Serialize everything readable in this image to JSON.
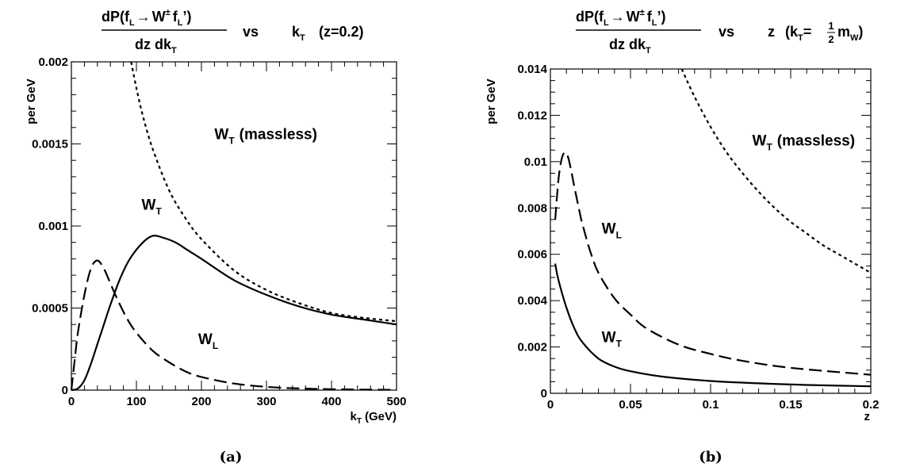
{
  "chart_data": [
    {
      "type": "line",
      "caption": "(a)",
      "title": {
        "numerator_main": "dP(f",
        "numerator_sub1": "L",
        "numerator_arrow": "→",
        "numerator_W": "W",
        "numerator_sup": "±",
        "numerator_f": "f",
        "numerator_sub2": "L",
        "numerator_end": "’)",
        "denominator_main": "dz dk",
        "denominator_sub": "T",
        "vs": "vs",
        "var_main": "k",
        "var_sub": "T",
        "condition": "(z=0.2)"
      },
      "ylabel": "per GeV",
      "xlabel_main": "k",
      "xlabel_sub": "T",
      "xlabel_unit": "(GeV)",
      "xlim": [
        0,
        500
      ],
      "ylim": [
        0,
        0.002
      ],
      "xticks": [
        0,
        100,
        200,
        300,
        400,
        500
      ],
      "xtick_labels": [
        "0",
        "100",
        "200",
        "300",
        "400",
        "500"
      ],
      "yticks": [
        0,
        0.0005,
        0.001,
        0.0015,
        0.002
      ],
      "ytick_labels": [
        "0",
        "0.0005",
        "0.001",
        "0.0015",
        "0.002"
      ],
      "series": [
        {
          "name": "W_T (massless)",
          "style": "dotted",
          "x": [
            92,
            100,
            110,
            125,
            150,
            175,
            200,
            250,
            300,
            350,
            400,
            450,
            500
          ],
          "y": [
            0.002,
            0.00184,
            0.00167,
            0.00147,
            0.00122,
            0.00105,
            0.00092,
            0.00073,
            0.00061,
            0.00053,
            0.00047,
            0.00044,
            0.00042
          ]
        },
        {
          "name": "W_T",
          "style": "solid",
          "x": [
            0,
            10,
            20,
            30,
            40,
            50,
            60,
            75,
            90,
            110,
            125,
            140,
            160,
            180,
            200,
            250,
            300,
            350,
            400,
            450,
            500
          ],
          "y": [
            0,
            1e-05,
            6e-05,
            0.00016,
            0.00028,
            0.0004,
            0.00052,
            0.00068,
            0.0008,
            0.0009,
            0.00094,
            0.00093,
            0.0009,
            0.00085,
            0.0008,
            0.00067,
            0.00058,
            0.00051,
            0.00046,
            0.00043,
            0.0004
          ]
        },
        {
          "name": "W_L",
          "style": "dashed",
          "x": [
            0,
            5,
            10,
            20,
            30,
            40,
            50,
            60,
            70,
            85,
            100,
            125,
            150,
            175,
            200,
            250,
            300,
            350,
            400,
            450,
            500
          ],
          "y": [
            0,
            0.00018,
            0.00035,
            0.00058,
            0.00074,
            0.00079,
            0.00074,
            0.00065,
            0.00056,
            0.00044,
            0.00035,
            0.00024,
            0.00017,
            0.000115,
            8e-05,
            4e-05,
            2e-05,
            1e-05,
            6e-06,
            3e-06,
            2e-06
          ]
        }
      ],
      "annotations": [
        {
          "series": "W_T (massless)",
          "main": "W",
          "sub": "T",
          "rest": "(massless)",
          "at": [
            220,
            0.00153
          ]
        },
        {
          "series": "W_T",
          "main": "W",
          "sub": "T",
          "rest": "",
          "at": [
            108,
            0.0011
          ]
        },
        {
          "series": "W_L",
          "main": "W",
          "sub": "L",
          "rest": "",
          "at": [
            195,
            0.00028
          ]
        }
      ]
    },
    {
      "type": "line",
      "caption": "(b)",
      "title": {
        "numerator_main": "dP(f",
        "numerator_sub1": "L",
        "numerator_arrow": "→",
        "numerator_W": "W",
        "numerator_sup": "±",
        "numerator_f": "f",
        "numerator_sub2": "L",
        "numerator_end": "’)",
        "denominator_main": "dz dk",
        "denominator_sub": "T",
        "vs": "vs",
        "var_main": "z",
        "condition_open": "(k",
        "condition_sub": "T",
        "condition_eq": "=",
        "condition_num": "1",
        "condition_den": "2",
        "condition_m": "m",
        "condition_msub": "W",
        "condition_close": ")"
      },
      "ylabel": "per GeV",
      "xlabel": "z",
      "xlim": [
        0,
        0.2
      ],
      "ylim": [
        0,
        0.014
      ],
      "xticks": [
        0,
        0.05,
        0.1,
        0.15,
        0.2
      ],
      "xtick_labels": [
        "0",
        "0.05",
        "0.1",
        "0.15",
        "0.2"
      ],
      "yticks": [
        0,
        0.002,
        0.004,
        0.006,
        0.008,
        0.01,
        0.012,
        0.014
      ],
      "ytick_labels": [
        "0",
        "0.002",
        "0.004",
        "0.006",
        "0.008",
        "0.01",
        "0.012",
        "0.014"
      ],
      "series": [
        {
          "name": "W_T (massless)",
          "style": "dotted",
          "x": [
            0.082,
            0.09,
            0.1,
            0.11,
            0.12,
            0.13,
            0.14,
            0.15,
            0.16,
            0.17,
            0.18,
            0.19,
            0.2
          ],
          "y": [
            0.014,
            0.0128,
            0.0115,
            0.0104,
            0.0095,
            0.0087,
            0.008,
            0.0074,
            0.0069,
            0.0064,
            0.006,
            0.0056,
            0.0052
          ]
        },
        {
          "name": "W_T",
          "style": "solid",
          "x": [
            0.003,
            0.005,
            0.01,
            0.015,
            0.02,
            0.03,
            0.04,
            0.05,
            0.07,
            0.1,
            0.13,
            0.16,
            0.2
          ],
          "y": [
            0.0056,
            0.0049,
            0.0037,
            0.0028,
            0.0022,
            0.0015,
            0.00115,
            0.00095,
            0.00072,
            0.00053,
            0.00043,
            0.00036,
            0.0003
          ]
        },
        {
          "name": "W_L",
          "style": "dashed",
          "x": [
            0.003,
            0.005,
            0.007,
            0.009,
            0.011,
            0.013,
            0.015,
            0.018,
            0.02,
            0.025,
            0.03,
            0.04,
            0.05,
            0.06,
            0.08,
            0.1,
            0.12,
            0.15,
            0.2
          ],
          "y": [
            0.0075,
            0.0092,
            0.0101,
            0.0104,
            0.0102,
            0.0096,
            0.0089,
            0.0079,
            0.0073,
            0.0061,
            0.0052,
            0.0041,
            0.0034,
            0.0028,
            0.0021,
            0.0017,
            0.0014,
            0.0011,
            0.0008
          ]
        }
      ],
      "annotations": [
        {
          "series": "W_T (massless)",
          "main": "W",
          "sub": "T",
          "rest": "(massless)",
          "at": [
            0.126,
            0.0107
          ]
        },
        {
          "series": "W_L",
          "main": "W",
          "sub": "L",
          "rest": "",
          "at": [
            0.032,
            0.0069
          ]
        },
        {
          "series": "W_T",
          "main": "W",
          "sub": "T",
          "rest": "",
          "at": [
            0.032,
            0.0022
          ]
        }
      ]
    }
  ]
}
